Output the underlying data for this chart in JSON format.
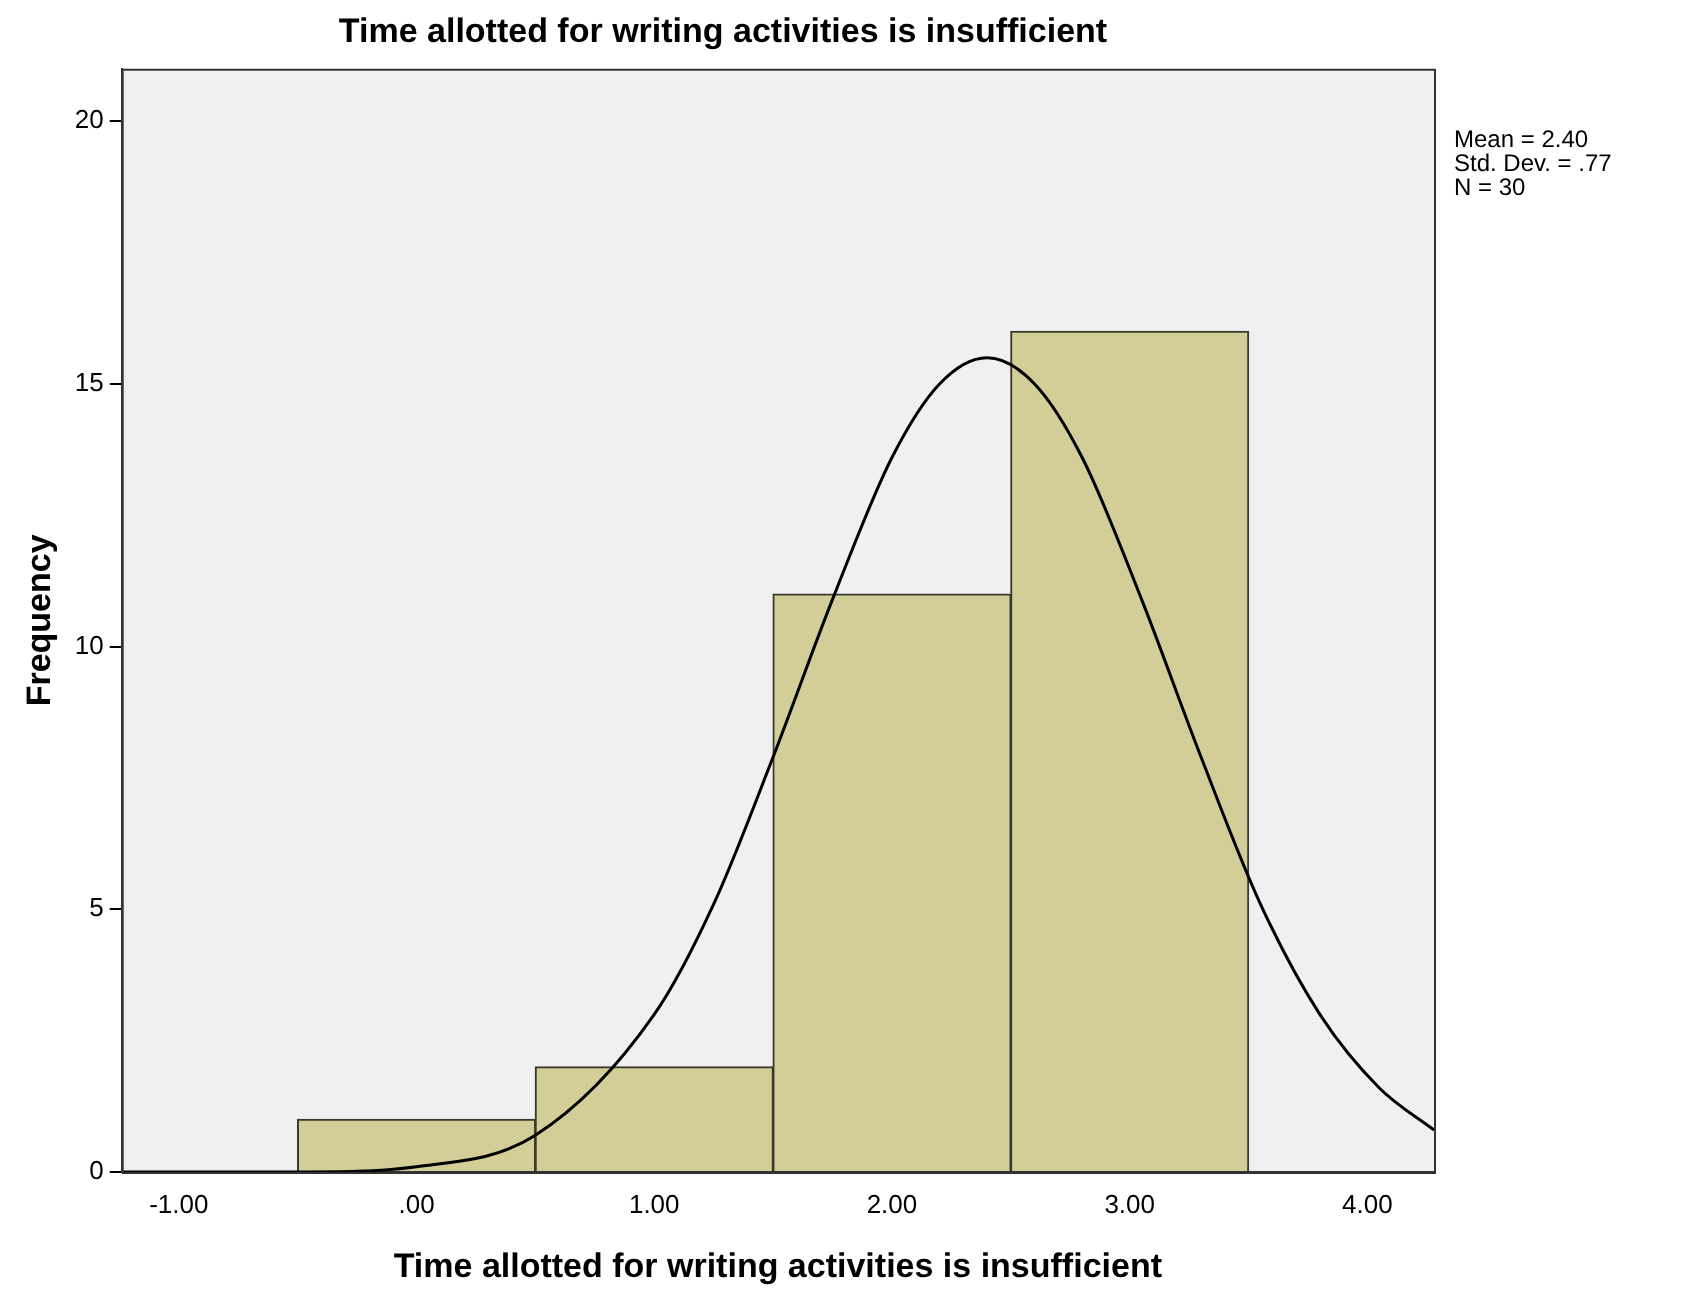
{
  "chart_data": {
    "type": "histogram",
    "title": "Time allotted for writing activities is insufficient",
    "xlabel": "Time allotted for writing activities is insufficient",
    "ylabel": "Frequency",
    "bins": [
      -0.5,
      0.5,
      1.5,
      2.5,
      3.5
    ],
    "values": [
      1,
      2,
      11,
      16
    ],
    "color": "#d3ce97",
    "series": [
      {
        "type": "line",
        "color": "#000000",
        "x": [
          -1.24,
          -0.5,
          0,
          0.5,
          1,
          1.25,
          1.5,
          1.75,
          2,
          2.2,
          2.4,
          2.6,
          2.8,
          3.05,
          3.3,
          3.55,
          3.8,
          4.05,
          4.28
        ],
        "values": [
          0,
          0,
          0.1,
          0.7,
          3,
          5.1,
          7.9,
          10.9,
          13.6,
          15,
          15.5,
          15,
          13.6,
          10.9,
          7.9,
          5.1,
          3,
          1.6,
          0.8
        ]
      }
    ],
    "xlim": [
      -1.24,
      4.28
    ],
    "xticks": [
      {
        "value": -1,
        "label": "-1.00"
      },
      {
        "value": 0,
        "label": ".00"
      },
      {
        "value": 1,
        "label": "1.00"
      },
      {
        "value": 2,
        "label": "2.00"
      },
      {
        "value": 3,
        "label": "3.00"
      },
      {
        "value": 4,
        "label": "4.00"
      }
    ],
    "ylim": [
      0,
      21
    ],
    "yticks": [
      0,
      5,
      10,
      15,
      20
    ],
    "grid": false,
    "legend": false,
    "marker": "none",
    "annotations": [
      "Mean = 2.40",
      "Std. Dev. = .77",
      "N = 30"
    ]
  }
}
